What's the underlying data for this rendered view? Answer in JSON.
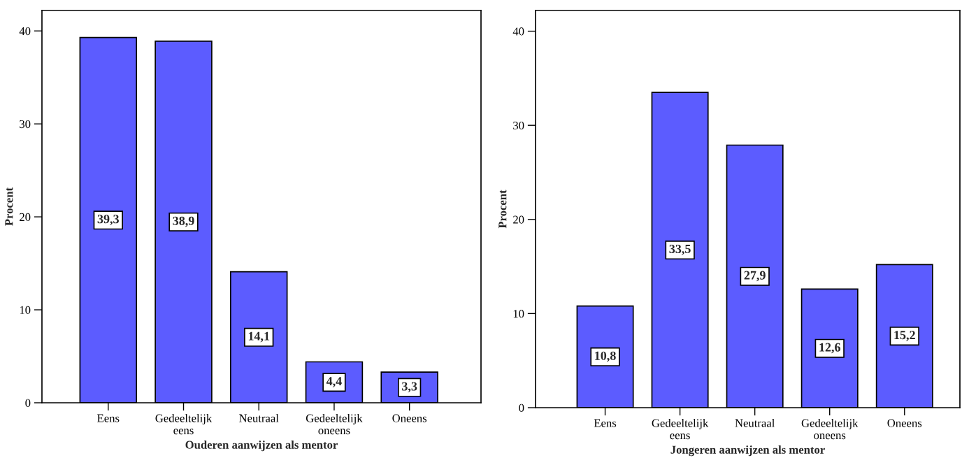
{
  "chart_data": [
    {
      "type": "bar",
      "xlabel": "Ouderen aanwijzen als mentor",
      "ylabel": "Procent",
      "categories": [
        "Eens",
        "Gedeeltelijk eens",
        "Neutraal",
        "Gedeeltelijk oneens",
        "Oneens"
      ],
      "values": [
        39.3,
        38.9,
        14.1,
        4.4,
        3.3
      ],
      "value_labels": [
        "39,3",
        "38,9",
        "14,1",
        "4,4",
        "3,3"
      ],
      "color": "#5c5cff",
      "ylim": [
        0,
        42.2
      ],
      "yticks": [
        0,
        10,
        20,
        30,
        40
      ],
      "grid": false,
      "legend": false
    },
    {
      "type": "bar",
      "xlabel": "Jongeren aanwijzen als mentor",
      "ylabel": "Procent",
      "categories": [
        "Eens",
        "Gedeeltelijk eens",
        "Neutraal",
        "Gedeeltelijk oneens",
        "Oneens"
      ],
      "values": [
        10.8,
        33.5,
        27.9,
        12.6,
        15.2
      ],
      "value_labels": [
        "10,8",
        "33,5",
        "27,9",
        "12,6",
        "15,2"
      ],
      "color": "#5c5cff",
      "ylim": [
        0,
        42.2
      ],
      "yticks": [
        0,
        10,
        20,
        30,
        40
      ],
      "grid": false,
      "legend": false
    }
  ]
}
